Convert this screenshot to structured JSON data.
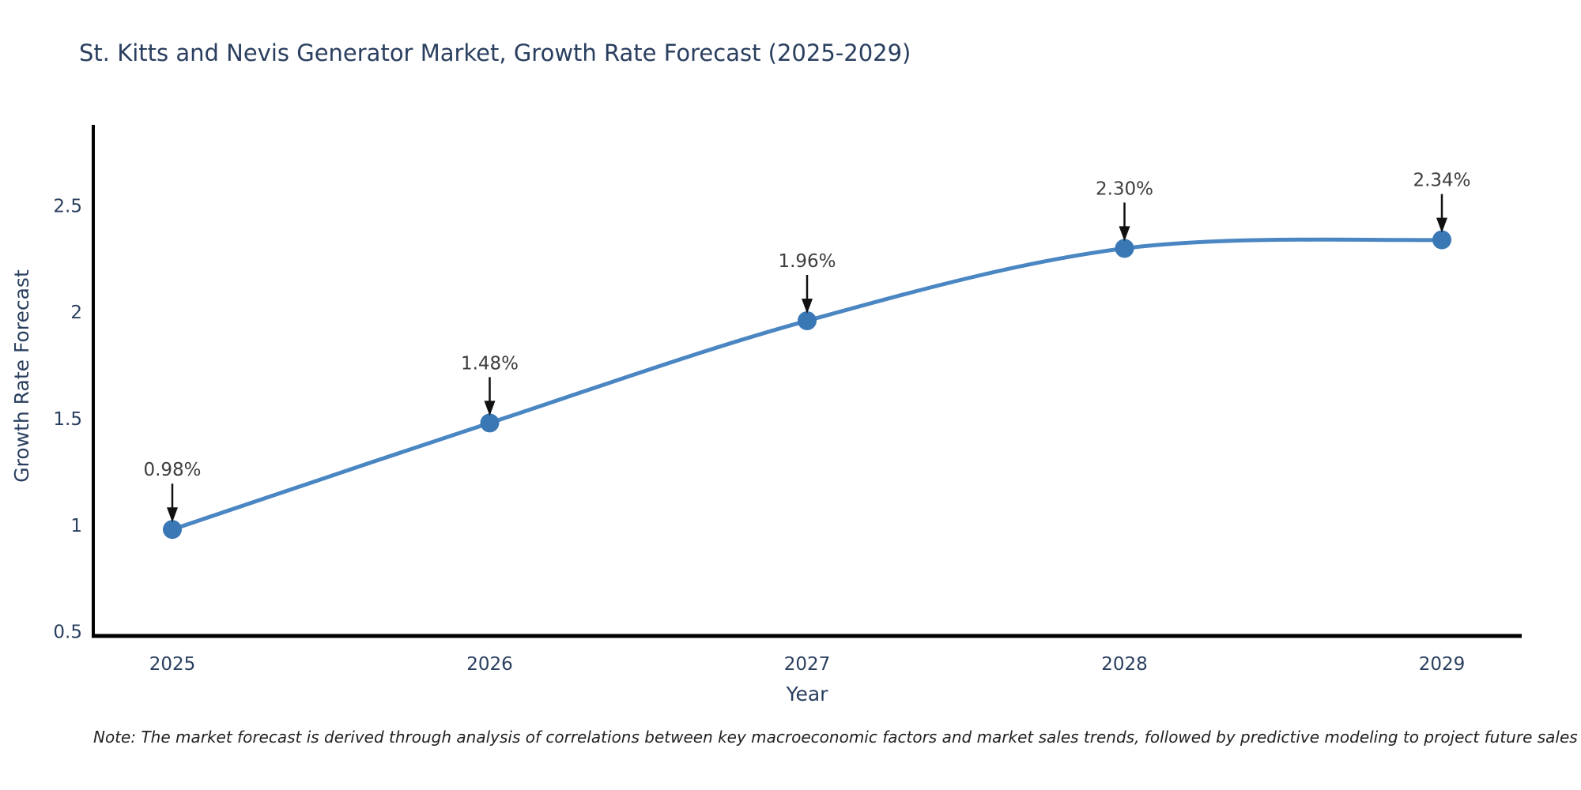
{
  "page": {
    "title": "St. Kitts and Nevis Generator Market, Growth Rate Forecast (2025-2029)",
    "note": "Note: The market forecast is derived through analysis of correlations between key macroeconomic factors and market sales trends, followed by predictive modeling to project future sales"
  },
  "chart_data": {
    "type": "line",
    "title": "St. Kitts and Nevis Generator Market, Growth Rate Forecast (2025-2029)",
    "x": [
      "2025",
      "2026",
      "2027",
      "2028",
      "2029"
    ],
    "series": [
      {
        "name": "Growth Rate Forecast",
        "values": [
          0.98,
          1.48,
          1.96,
          2.3,
          2.34
        ]
      }
    ],
    "point_labels": [
      "0.98%",
      "1.48%",
      "1.96%",
      "2.30%",
      "2.34%"
    ],
    "xlabel": "Year",
    "ylabel": "Growth Rate Forecast",
    "y_ticks": [
      "0.5",
      "1",
      "1.5",
      "2",
      "2.5"
    ],
    "y_tick_values": [
      0.5,
      1,
      1.5,
      2,
      2.5
    ],
    "ylim": [
      0.48,
      2.88
    ],
    "grid": false,
    "line_shape": "spline",
    "legend": "none",
    "colors": {
      "line": "#4a86c2",
      "marker": "#3a78b5",
      "axis": "#000000",
      "tick_text": "#2a3f5f",
      "annotation_text": "#3d3d3d",
      "arrow": "#111111"
    }
  }
}
